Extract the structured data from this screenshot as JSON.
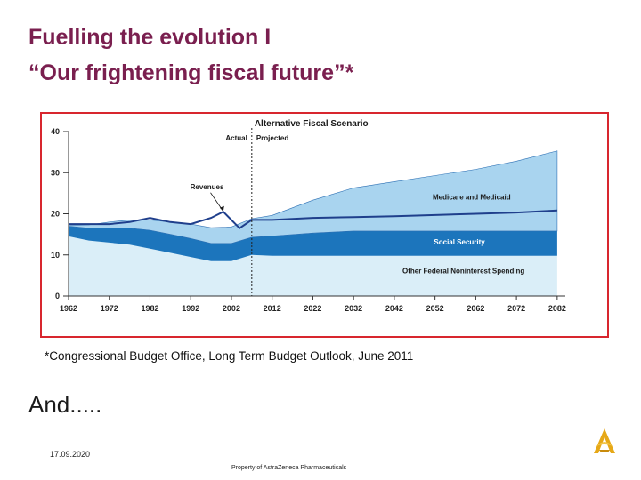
{
  "slide": {
    "title": "Fuelling the evolution I",
    "subtitle": "“Our frightening fiscal future”*",
    "footnote": "*Congressional Budget Office, Long Term Budget Outlook, June 2011",
    "and_text": "And.....",
    "date": "17.09.2020",
    "footer": "Property of AstraZeneca Pharmaceuticals",
    "logo_icon": "astrazeneca-logo-icon",
    "title_color": "#7a1f4f",
    "frame_color": "#d8262e"
  },
  "chart_data": {
    "type": "area",
    "title": "Alternative Fiscal Scenario",
    "divider_labels": {
      "left": "Actual",
      "right": "Projected"
    },
    "divider_x": 2007,
    "xlim": [
      1962,
      2084
    ],
    "ylim": [
      0,
      40
    ],
    "x_ticks": [
      1962,
      1972,
      1982,
      1992,
      2002,
      2012,
      2022,
      2032,
      2042,
      2052,
      2062,
      2072,
      2082
    ],
    "y_ticks": [
      0,
      10,
      20,
      30,
      40
    ],
    "x_tick_labels": [
      "1962",
      "1972",
      "1982",
      "1992",
      "2002",
      "2012",
      "2022",
      "2032",
      "2042",
      "2052",
      "2062",
      "2072",
      "2082"
    ],
    "y_tick_labels": [
      "0",
      "10",
      "20",
      "30",
      "40"
    ],
    "colors": {
      "other": "#daeef8",
      "social_security": "#1c75bc",
      "medicare": "#a9d4ef",
      "revenue_line": "#1f3f8c",
      "axis": "#333333"
    },
    "series": [
      {
        "name": "Other Federal Noninterest Spending",
        "x": [
          1962,
          1967,
          1972,
          1977,
          1982,
          1987,
          1992,
          1997,
          2002,
          2007,
          2012,
          2022,
          2032,
          2042,
          2052,
          2062,
          2072,
          2082
        ],
        "values": [
          14.5,
          13.5,
          13.0,
          12.5,
          11.5,
          10.5,
          9.5,
          8.5,
          8.5,
          10.0,
          9.8,
          9.8,
          9.8,
          9.8,
          9.8,
          9.8,
          9.8,
          9.8
        ]
      },
      {
        "name": "Social Security",
        "x": [
          1962,
          1967,
          1972,
          1977,
          1982,
          1987,
          1992,
          1997,
          2002,
          2007,
          2012,
          2022,
          2032,
          2042,
          2052,
          2062,
          2072,
          2082
        ],
        "values": [
          2.5,
          3.0,
          3.5,
          4.0,
          4.5,
          4.5,
          4.5,
          4.3,
          4.3,
          4.3,
          4.8,
          5.5,
          6.0,
          6.0,
          6.0,
          6.0,
          6.0,
          6.0
        ]
      },
      {
        "name": "Medicare and Medicaid",
        "x": [
          1962,
          1967,
          1972,
          1977,
          1982,
          1987,
          1992,
          1997,
          2002,
          2007,
          2012,
          2022,
          2032,
          2042,
          2052,
          2062,
          2072,
          2082
        ],
        "values": [
          0.2,
          0.8,
          1.5,
          2.0,
          2.5,
          3.0,
          3.5,
          3.8,
          4.0,
          4.5,
          5.0,
          8.0,
          10.5,
          12.0,
          13.5,
          15.0,
          17.0,
          19.5
        ]
      },
      {
        "name": "Revenues",
        "type": "line",
        "x": [
          1962,
          1967,
          1972,
          1977,
          1982,
          1987,
          1992,
          1997,
          2000,
          2004,
          2007,
          2012,
          2022,
          2032,
          2042,
          2052,
          2062,
          2072,
          2082
        ],
        "values": [
          17.5,
          17.5,
          17.5,
          18.0,
          19.0,
          18.0,
          17.5,
          19.0,
          20.5,
          16.5,
          18.5,
          18.5,
          19.0,
          19.2,
          19.4,
          19.7,
          20.0,
          20.3,
          20.8
        ]
      }
    ],
    "annotations": [
      {
        "text": "Revenues",
        "x": 1996,
        "y": 26
      },
      {
        "text": "Medicare and Medicaid",
        "x": 2061,
        "y": 23.5
      },
      {
        "text": "Social Security",
        "x": 2058,
        "y": 12.5
      },
      {
        "text": "Other Federal Noninterest Spending",
        "x": 2059,
        "y": 5.5
      }
    ]
  }
}
